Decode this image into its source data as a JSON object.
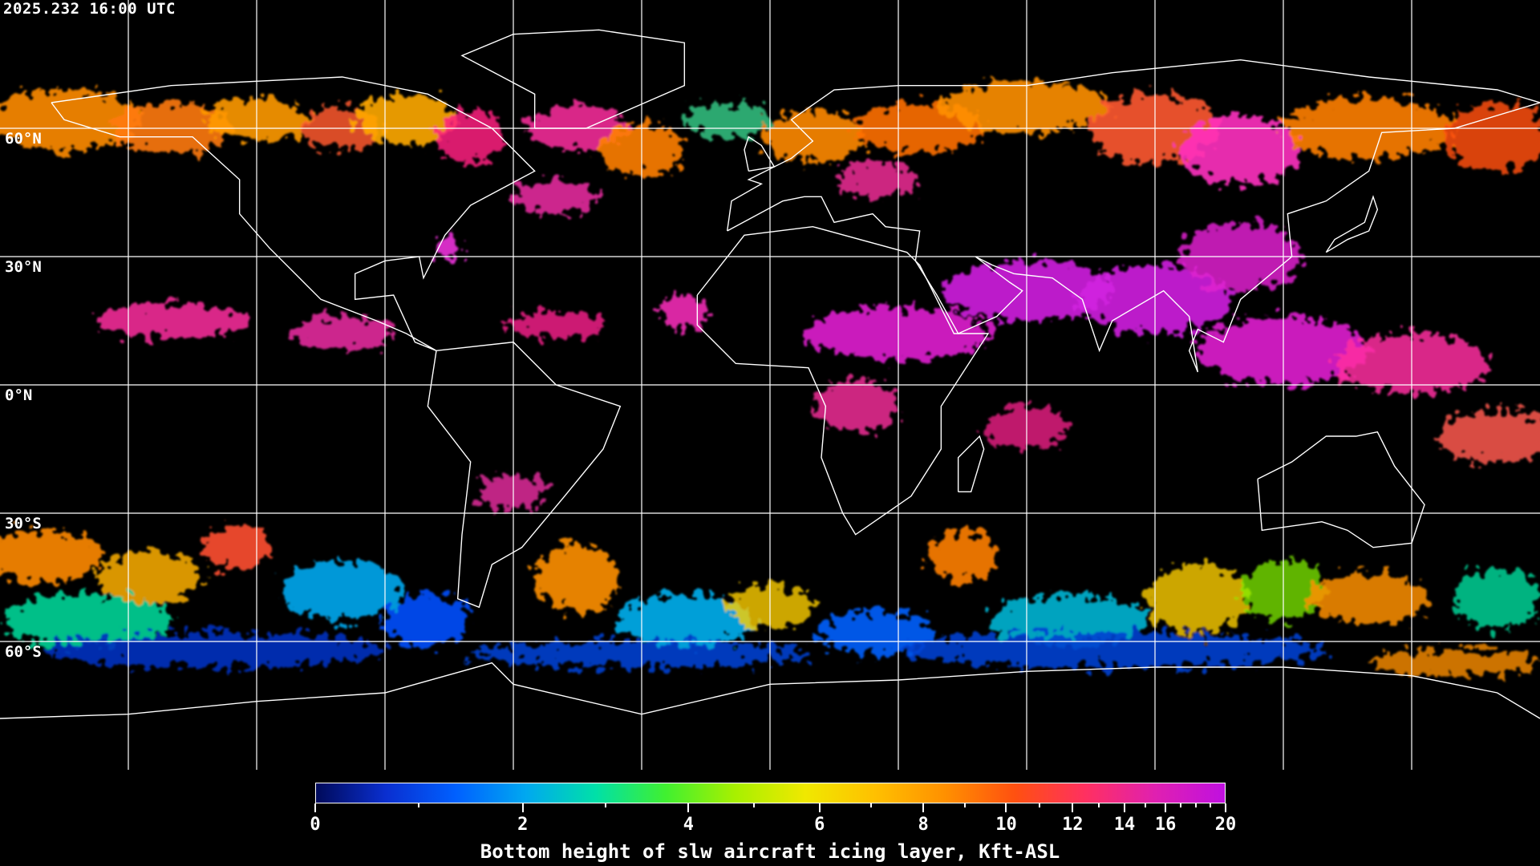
{
  "header": {
    "timestamp": "2025.232 16:00 UTC"
  },
  "map": {
    "projection": "equirectangular",
    "lon_range": [
      -180,
      180
    ],
    "lat_range": [
      -90,
      90
    ],
    "grid_spacing_deg": 30,
    "grid_color": "#ffffff",
    "coastline_color": "#ffffff",
    "background": "#000000",
    "lat_labels": [
      "60°N",
      "30°N",
      "0°N",
      "30°S",
      "60°S"
    ]
  },
  "colorbar": {
    "title": "Bottom height of slw aircraft icing layer, Kft-ASL",
    "range": [
      0,
      20
    ],
    "tick_labels": [
      "0",
      "2",
      "4",
      "6",
      "8",
      "10",
      "12",
      "14",
      "16",
      "20"
    ],
    "colors": [
      "#000a5a",
      "#0a2fd0",
      "#0060ff",
      "#00a8f0",
      "#00e0a8",
      "#40f030",
      "#a8f000",
      "#f0e800",
      "#ffc000",
      "#ff9000",
      "#ff5010",
      "#ff3060",
      "#e020b0",
      "#c010e0"
    ]
  }
}
